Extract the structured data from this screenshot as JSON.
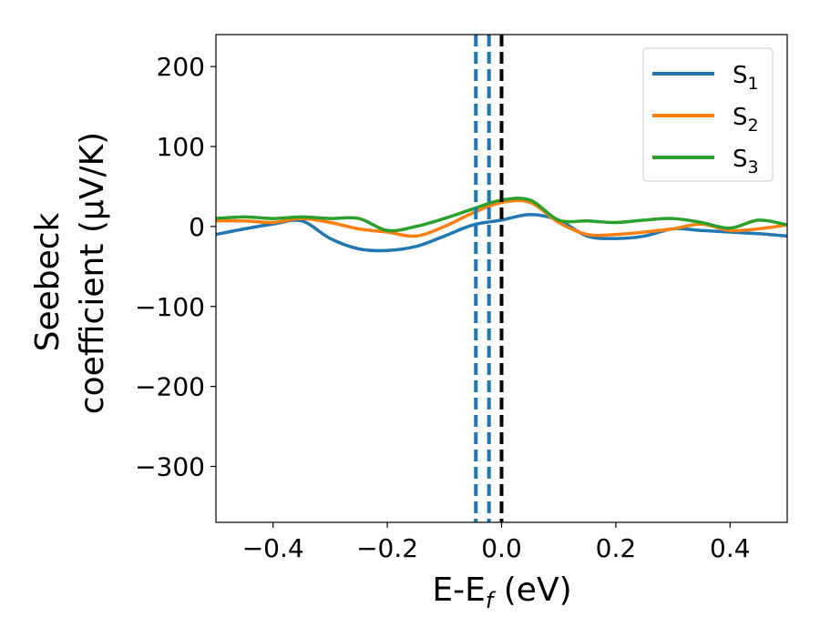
{
  "chart_data": {
    "type": "line",
    "xlabel": "E-E",
    "xlabel_subscript": "f",
    "xlabel_suffix": " (eV)",
    "ylabel_line1": "Seebeck",
    "ylabel_line2": "coefficient  (μV/K)",
    "xlim": [
      -0.5,
      0.5
    ],
    "ylim": [
      -370,
      240
    ],
    "xticks": [
      -0.4,
      -0.2,
      0.0,
      0.2,
      0.4
    ],
    "xtick_labels": [
      "−0.4",
      "−0.2",
      "0.0",
      "0.2",
      "0.4"
    ],
    "yticks": [
      200,
      100,
      0,
      -100,
      -200,
      -300
    ],
    "ytick_labels": [
      "200",
      "100",
      "0",
      "−100",
      "−200",
      "−300"
    ],
    "grid": false,
    "legend_position": "top-right",
    "series": [
      {
        "name": "S",
        "subscript": "1",
        "color": "#1f77b4",
        "x": [
          -0.5,
          -0.45,
          -0.4,
          -0.35,
          -0.3,
          -0.25,
          -0.2,
          -0.15,
          -0.1,
          -0.05,
          0.0,
          0.05,
          0.1,
          0.15,
          0.2,
          0.25,
          0.3,
          0.35,
          0.4,
          0.45,
          0.5
        ],
        "y": [
          -10,
          -3,
          3,
          7,
          -15,
          -28,
          -30,
          -25,
          -12,
          2,
          8,
          15,
          8,
          -12,
          -15,
          -12,
          -3,
          -5,
          -7,
          -9,
          -12
        ]
      },
      {
        "name": "S",
        "subscript": "2",
        "color": "#ff7f0e",
        "x": [
          -0.5,
          -0.45,
          -0.4,
          -0.35,
          -0.3,
          -0.25,
          -0.2,
          -0.15,
          -0.1,
          -0.05,
          0.0,
          0.05,
          0.1,
          0.15,
          0.2,
          0.25,
          0.3,
          0.35,
          0.4,
          0.45,
          0.5
        ],
        "y": [
          7,
          7,
          5,
          10,
          5,
          -3,
          -7,
          -12,
          0,
          17,
          30,
          30,
          5,
          -10,
          -10,
          -7,
          -3,
          3,
          -5,
          -3,
          2
        ]
      },
      {
        "name": "S",
        "subscript": "3",
        "color": "#2ca02c",
        "x": [
          -0.5,
          -0.45,
          -0.4,
          -0.35,
          -0.3,
          -0.25,
          -0.2,
          -0.15,
          -0.1,
          -0.05,
          0.0,
          0.05,
          0.1,
          0.15,
          0.2,
          0.25,
          0.3,
          0.35,
          0.4,
          0.45,
          0.5
        ],
        "y": [
          10,
          12,
          10,
          12,
          10,
          10,
          -5,
          0,
          10,
          22,
          33,
          33,
          8,
          7,
          5,
          8,
          10,
          5,
          -2,
          8,
          2
        ]
      }
    ],
    "vertical_lines": [
      {
        "x": -0.045,
        "color": "#1f77b4",
        "style": "dashed"
      },
      {
        "x": -0.022,
        "color": "#1f77b4",
        "style": "dashed"
      },
      {
        "x": 0.0,
        "color": "#000000",
        "style": "dashed"
      }
    ]
  }
}
